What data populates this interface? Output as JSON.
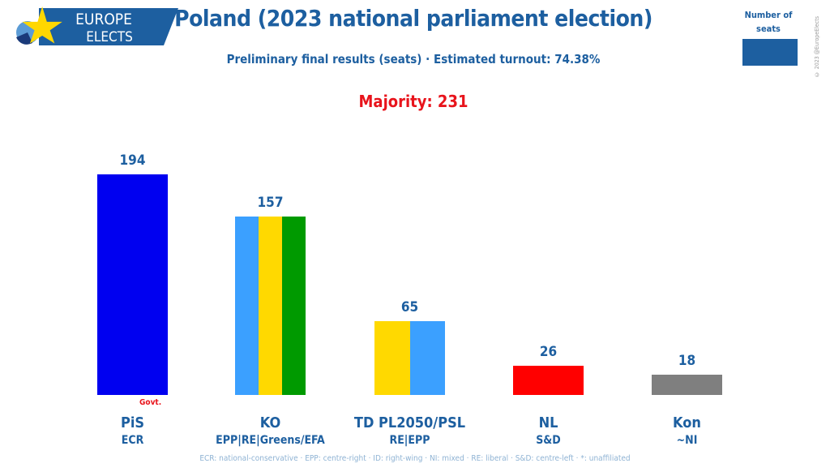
{
  "header": {
    "logo_text_1": "EUROPE",
    "logo_text_2": "ELECTS",
    "legend": "Number of seats",
    "copyright": "© 2023 @EuropeElects"
  },
  "colors": {
    "title": "#1d5fa0",
    "majority": "#e8141c"
  },
  "chart_data": {
    "type": "bar",
    "title": "Poland (2023 national parliament election)",
    "subtitle": "Preliminary final results (seats) · Estimated turnout: 74.38%",
    "annotation": "Majority: 231",
    "categories": [
      "PiS",
      "KO",
      "TD PL2050/PSL",
      "NL",
      "Kon"
    ],
    "groups": [
      "ECR",
      "EPP|RE|Greens/EFA",
      "RE|EPP",
      "S&D",
      "~NI"
    ],
    "values": [
      194,
      157,
      65,
      26,
      18
    ],
    "bar_colors": [
      [
        "#0000f0"
      ],
      [
        "#3ba0ff",
        "#ffd900",
        "#009a00"
      ],
      [
        "#ffd900",
        "#3ba0ff"
      ],
      [
        "#ff0000"
      ],
      [
        "#7f7f7f"
      ]
    ],
    "govt_label": "Govt.",
    "govt_index": 0,
    "footnote": "ECR: national-conservative · EPP: centre-right · ID: right-wing · NI: mixed · RE: liberal · S&D: centre-left · *: unaffiliated",
    "ylim": [
      0,
      194
    ],
    "grid": false,
    "legend": "top-right"
  }
}
